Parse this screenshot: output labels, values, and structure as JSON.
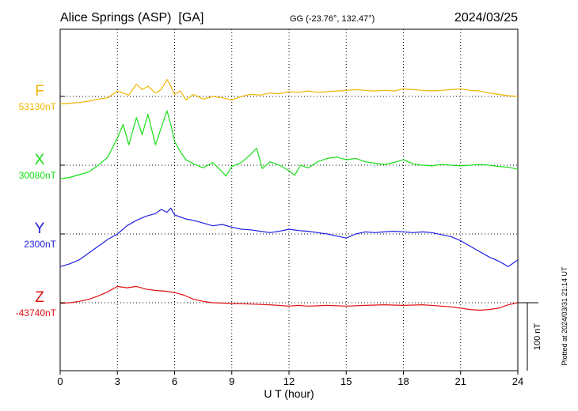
{
  "header": {
    "station": "Alice Springs (ASP)  [GA]",
    "coords": "GG (-23.76°, 132.47°)",
    "date": "2024/03/25"
  },
  "footer": {
    "plotted": "Plotted at 2024/03/31 21:14 UT"
  },
  "chart_data": {
    "type": "line",
    "xlabel": "U T (hour)",
    "xlim": [
      0,
      24
    ],
    "x_ticks": [
      "0",
      "3",
      "6",
      "9",
      "12",
      "15",
      "18",
      "21",
      "24"
    ],
    "scale_bar": "100 nT",
    "grid": "dotted",
    "series": [
      {
        "name": "F",
        "baseline_label": "53130nT",
        "baseline": 53130,
        "color": "#f0b400",
        "x": [
          0,
          0.5,
          1,
          1.5,
          2,
          2.5,
          3,
          3.3,
          3.6,
          4,
          4.3,
          4.6,
          5,
          5.3,
          5.6,
          5.8,
          6,
          6.3,
          6.6,
          7,
          7.5,
          8,
          8.5,
          9,
          9.5,
          10,
          10.5,
          11,
          11.5,
          12,
          12.5,
          13,
          13.5,
          14,
          14.5,
          15,
          15.5,
          16,
          16.5,
          17,
          17.5,
          18,
          18.5,
          19,
          19.5,
          20,
          20.5,
          21,
          21.5,
          22,
          22.5,
          23,
          23.5,
          24
        ],
        "values": [
          53119,
          53120,
          53121,
          53123,
          53126,
          53128,
          53138,
          53135,
          53132,
          53148,
          53140,
          53145,
          53135,
          53140,
          53155,
          53145,
          53133,
          53138,
          53125,
          53133,
          53126,
          53130,
          53128,
          53125,
          53130,
          53133,
          53132,
          53135,
          53134,
          53137,
          53136,
          53138,
          53136,
          53137,
          53138,
          53139,
          53140,
          53139,
          53138,
          53139,
          53138,
          53141,
          53140,
          53139,
          53138,
          53139,
          53140,
          53141,
          53139,
          53138,
          53135,
          53133,
          53131,
          53130
        ]
      },
      {
        "name": "X",
        "baseline_label": "30080nT",
        "baseline": 30080,
        "color": "#18e018",
        "x": [
          0,
          0.5,
          1,
          1.5,
          2,
          2.5,
          3,
          3.3,
          3.6,
          4,
          4.3,
          4.6,
          5,
          5.3,
          5.6,
          5.8,
          6,
          6.3,
          6.6,
          7,
          7.5,
          8,
          8.5,
          8.7,
          9,
          9.5,
          10,
          10.3,
          10.6,
          11,
          11.5,
          12,
          12.3,
          12.6,
          13,
          13.5,
          14,
          14.5,
          15,
          15.5,
          16,
          16.5,
          17,
          17.5,
          18,
          18.5,
          19,
          19.5,
          20,
          20.5,
          21,
          21.5,
          22,
          22.5,
          23,
          23.5,
          24
        ],
        "values": [
          30060,
          30062,
          30066,
          30070,
          30080,
          30092,
          30120,
          30140,
          30110,
          30150,
          30125,
          30155,
          30110,
          30135,
          30160,
          30140,
          30115,
          30100,
          30088,
          30082,
          30076,
          30084,
          30070,
          30064,
          30078,
          30084,
          30096,
          30105,
          30075,
          30085,
          30080,
          30072,
          30065,
          30080,
          30076,
          30085,
          30090,
          30092,
          30088,
          30090,
          30085,
          30083,
          30081,
          30084,
          30088,
          30082,
          30080,
          30079,
          30081,
          30080,
          30079,
          30080,
          30081,
          30080,
          30078,
          30077,
          30074
        ]
      },
      {
        "name": "Y",
        "baseline_label": "2300nT",
        "baseline": 2300,
        "color": "#2020e0",
        "x": [
          0,
          0.5,
          1,
          1.5,
          2,
          2.5,
          3,
          3.5,
          4,
          4.5,
          5,
          5.3,
          5.6,
          5.8,
          6,
          6.3,
          6.6,
          7,
          7.5,
          8,
          8.5,
          9,
          9.5,
          10,
          10.5,
          11,
          11.5,
          12,
          12.5,
          13,
          13.5,
          14,
          14.5,
          15,
          15.5,
          16,
          16.5,
          17,
          17.5,
          18,
          18.5,
          19,
          19.5,
          20,
          20.5,
          21,
          21.5,
          22,
          22.5,
          23,
          23.5,
          24
        ],
        "values": [
          2252,
          2256,
          2262,
          2272,
          2282,
          2292,
          2300,
          2312,
          2320,
          2326,
          2330,
          2336,
          2332,
          2338,
          2328,
          2325,
          2322,
          2320,
          2316,
          2312,
          2314,
          2310,
          2307,
          2306,
          2304,
          2302,
          2304,
          2307,
          2305,
          2304,
          2302,
          2300,
          2297,
          2294,
          2300,
          2303,
          2302,
          2303,
          2304,
          2303,
          2302,
          2303,
          2302,
          2299,
          2296,
          2290,
          2282,
          2274,
          2266,
          2260,
          2252,
          2262
        ]
      },
      {
        "name": "Z",
        "baseline_label": "-43740nT",
        "baseline": -43740,
        "color": "#e01010",
        "x": [
          0,
          0.5,
          1,
          1.5,
          2,
          2.5,
          3,
          3.5,
          4,
          4.5,
          5,
          5.5,
          6,
          6.5,
          7,
          7.5,
          8,
          9,
          10,
          11,
          12,
          12.5,
          13,
          14,
          15,
          16,
          17,
          18,
          19,
          20,
          20.5,
          21,
          21.5,
          22,
          22.5,
          23,
          23.5,
          24
        ],
        "values": [
          -43741,
          -43740,
          -43738,
          -43735,
          -43730,
          -43724,
          -43716,
          -43718,
          -43716,
          -43720,
          -43722,
          -43723,
          -43725,
          -43729,
          -43735,
          -43738,
          -43740,
          -43741,
          -43742,
          -43743,
          -43745,
          -43744,
          -43745,
          -43744,
          -43745,
          -43744,
          -43743,
          -43744,
          -43743,
          -43745,
          -43746,
          -43748,
          -43750,
          -43751,
          -43750,
          -43748,
          -43743,
          -43740
        ]
      }
    ]
  }
}
